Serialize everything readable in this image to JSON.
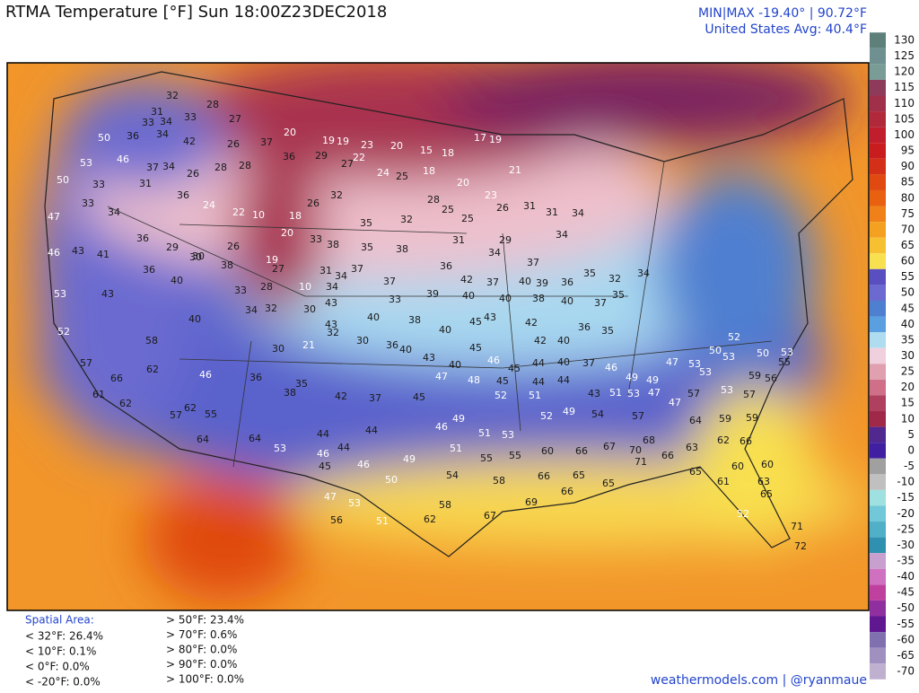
{
  "header": {
    "title": "RTMA Temperature [°F]  Sun 18:00Z23DEC2018",
    "minmax": "MIN|MAX -19.40° | 90.72°F",
    "average": "United States Avg: 40.4°F"
  },
  "colorbar": {
    "ticks": [
      130,
      125,
      120,
      115,
      110,
      105,
      100,
      95,
      90,
      85,
      80,
      75,
      70,
      65,
      60,
      55,
      50,
      45,
      40,
      35,
      30,
      25,
      20,
      15,
      10,
      5,
      0,
      -5,
      -10,
      -15,
      -20,
      -25,
      -30,
      -35,
      -40,
      -45,
      -50,
      -55,
      -60,
      -65,
      -70
    ],
    "colors": [
      "#5f7f7a",
      "#6e9090",
      "#7a9c97",
      "#8e3a5a",
      "#a0304a",
      "#b0283a",
      "#c01e2c",
      "#c81c1e",
      "#d43018",
      "#e04a10",
      "#e86010",
      "#f08018",
      "#f4a020",
      "#f6c030",
      "#f8e050",
      "#5a4fc0",
      "#6c6ad0",
      "#4f7fd0",
      "#5aa0e0",
      "#b0dcf0",
      "#f0d0dc",
      "#e0a0b0",
      "#d07088",
      "#b04060",
      "#a02848",
      "#502890",
      "#4020a0",
      "#a0a0a0",
      "#c0c0c0",
      "#9fe0e0",
      "#70c8d8",
      "#50b0c8",
      "#3090b0",
      "#c8a0d0",
      "#d070c0",
      "#c040a0",
      "#9030a0",
      "#601890",
      "#8070b0",
      "#a090c0",
      "#c0b0d0"
    ]
  },
  "spatial_area": {
    "title": "Spatial Area:",
    "below": [
      "< 32°F: 26.4%",
      "< 10°F: 0.1%",
      "< 0°F: 0.0%",
      "< -20°F: 0.0%"
    ],
    "above": [
      "> 50°F: 23.4%",
      "> 70°F: 0.6%",
      "> 80°F: 0.0%",
      "> 90°F: 0.0%",
      "> 100°F: 0.0%"
    ]
  },
  "credit": "weathermodels.com | @ryanmaue",
  "station_values": [
    32,
    31,
    33,
    34,
    33,
    28,
    27,
    50,
    36,
    34,
    42,
    26,
    37,
    20,
    19,
    19,
    23,
    20,
    15,
    18,
    17,
    19,
    53,
    46,
    37,
    34,
    26,
    28,
    28,
    36,
    29,
    22,
    27,
    24,
    25,
    18,
    20,
    23,
    21,
    50,
    33,
    31,
    36,
    24,
    22,
    10,
    18,
    26,
    32,
    35,
    32,
    28,
    25,
    25,
    26,
    31,
    31,
    34,
    47,
    33,
    34,
    36,
    29,
    30,
    26,
    19,
    20,
    33,
    38,
    35,
    38,
    31,
    29,
    34,
    37,
    34,
    46,
    43,
    41,
    36,
    40,
    30,
    38,
    27,
    31,
    34,
    37,
    37,
    36,
    42,
    37,
    40,
    39,
    36,
    35,
    32,
    34,
    53,
    43,
    33,
    28,
    10,
    34,
    33,
    39,
    40,
    40,
    38,
    40,
    37,
    35,
    52,
    40,
    34,
    32,
    30,
    43,
    43,
    40,
    38,
    40,
    45,
    43,
    42,
    42,
    40,
    36,
    35,
    57,
    58,
    30,
    21,
    32,
    30,
    36,
    40,
    43,
    40,
    45,
    46,
    45,
    44,
    40,
    37,
    66,
    62,
    46,
    36,
    35,
    38,
    42,
    37,
    45,
    47,
    48,
    45,
    44,
    44,
    43,
    61,
    62,
    57,
    62,
    55,
    52,
    51,
    49,
    52,
    49,
    46,
    51,
    53,
    64,
    64,
    53,
    44,
    44,
    44,
    46,
    45,
    46,
    49,
    51,
    55,
    55,
    60,
    66,
    67,
    70,
    68,
    71,
    66,
    63,
    50,
    54,
    58,
    66,
    65,
    47,
    53,
    58,
    62,
    67,
    69,
    66,
    65,
    56,
    51,
    65,
    61,
    60,
    60,
    63,
    65,
    52,
    71,
    72,
    54,
    57,
    47,
    57,
    53,
    57,
    64,
    59,
    59,
    62,
    66,
    46,
    49,
    49,
    47,
    53,
    53,
    50,
    53,
    52,
    50,
    53,
    59,
    56,
    55,
    51,
    53,
    47
  ]
}
